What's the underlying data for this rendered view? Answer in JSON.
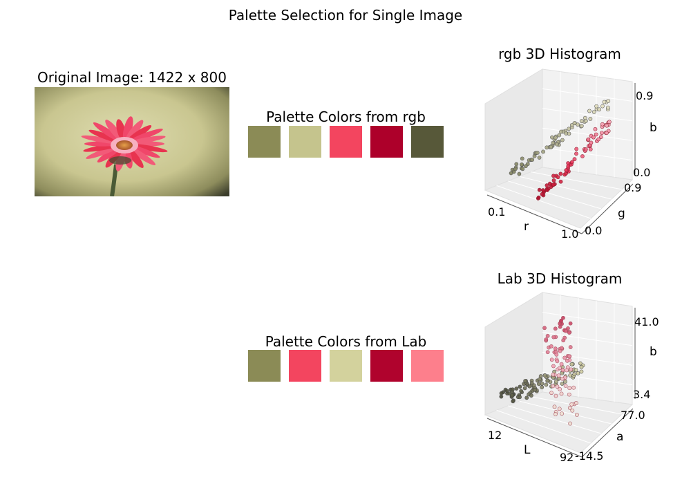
{
  "figure": {
    "title": "Palette Selection for Single Image"
  },
  "original_image": {
    "title": "Original Image: 1422 x 800",
    "description_colors": {
      "bg_center": "#d8d6a6",
      "bg_edge": "#3a3d2a",
      "petal": "#ec3a5c",
      "petal_light": "#f79ab0",
      "center": "#d98a3a",
      "stem": "#4d5a3a"
    }
  },
  "palettes": [
    {
      "title": "Palette Colors from rgb",
      "colors": [
        "#8b8b56",
        "#c5c48d",
        "#f3455f",
        "#ad002a",
        "#575839"
      ]
    },
    {
      "title": "Palette Colors from Lab",
      "colors": [
        "#8b8b56",
        "#f3455f",
        "#d3d29d",
        "#b0032d",
        "#fd7f8c"
      ]
    }
  ],
  "chart_data": [
    {
      "type": "scatter3d",
      "title": "rgb 3D Histogram",
      "axes": {
        "x": {
          "label": "r",
          "ticks": [
            "0.1",
            "1.0"
          ],
          "lim": [
            0.1,
            1.0
          ]
        },
        "y": {
          "label": "g",
          "ticks": [
            "0.0",
            "0.9"
          ],
          "lim": [
            0.0,
            0.9
          ]
        },
        "z": {
          "label": "b",
          "ticks": [
            "0.0",
            "0.9"
          ],
          "lim": [
            0.0,
            0.9
          ]
        }
      },
      "grid": true
    },
    {
      "type": "scatter3d",
      "title": "Lab 3D Histogram",
      "axes": {
        "x": {
          "label": "L",
          "ticks": [
            "12",
            "92"
          ],
          "lim": [
            12,
            92
          ]
        },
        "y": {
          "label": "a",
          "ticks": [
            "-14.5",
            "77.0"
          ],
          "lim": [
            -14.5,
            77.0
          ]
        },
        "z": {
          "label": "b",
          "ticks": [
            "3.4",
            "41.0"
          ],
          "lim": [
            3.4,
            41.0
          ]
        }
      },
      "grid": true
    }
  ]
}
